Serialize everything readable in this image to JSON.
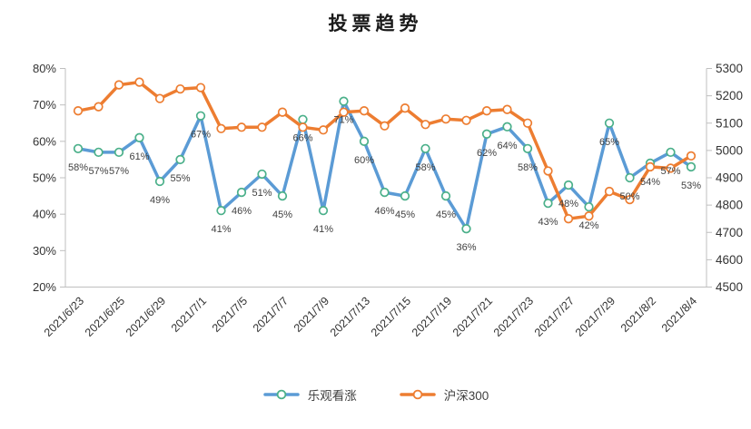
{
  "chart_data": {
    "type": "line",
    "title": "投票趋势",
    "n_points": 31,
    "label_every_n_points": 2,
    "x_tick_labels": [
      "2021/6/23",
      "2021/6/25",
      "2021/6/29",
      "2021/7/1",
      "2021/7/5",
      "2021/7/7",
      "2021/7/9",
      "2021/7/13",
      "2021/7/15",
      "2021/7/19",
      "2021/7/21",
      "2021/7/23",
      "2021/7/27",
      "2021/7/29",
      "2021/8/2",
      "2021/8/4"
    ],
    "left_axis": {
      "min": 20,
      "max": 80,
      "tick_labels": [
        "20%",
        "30%",
        "40%",
        "50%",
        "60%",
        "70%",
        "80%"
      ]
    },
    "right_axis": {
      "min": 4500,
      "max": 5300,
      "tick_labels": [
        "4500",
        "4600",
        "4700",
        "4800",
        "4900",
        "5000",
        "5100",
        "5200",
        "5300"
      ]
    },
    "series": [
      {
        "name": "乐观看涨",
        "axis": "left",
        "line_color": "#5B9BD5",
        "marker_color": "#4BB08A",
        "values": [
          58,
          57,
          57,
          61,
          49,
          55,
          67,
          41,
          46,
          51,
          45,
          66,
          41,
          71,
          60,
          46,
          45,
          58,
          45,
          36,
          62,
          64,
          58,
          43,
          48,
          42,
          65,
          50,
          54,
          57,
          53
        ],
        "data_labels": [
          "58%",
          "57%",
          "57%",
          "61%",
          "49%",
          "55%",
          "67%",
          "41%",
          "46%",
          "51%",
          "45%",
          "66%",
          "41%",
          "71%",
          "60%",
          "46%",
          "45%",
          "58%",
          "45%",
          "36%",
          "62%",
          "64%",
          "58%",
          "43%",
          "48%",
          "42%",
          "65%",
          "50%",
          "54%",
          "57%",
          "53%"
        ]
      },
      {
        "name": "沪深300",
        "axis": "right",
        "line_color": "#ED7D31",
        "marker_color": "#ED7D31",
        "values": [
          5145,
          5160,
          5240,
          5250,
          5190,
          5225,
          5230,
          5080,
          5085,
          5085,
          5140,
          5085,
          5075,
          5140,
          5145,
          5090,
          5155,
          5095,
          5115,
          5110,
          5145,
          5150,
          5100,
          4925,
          4750,
          4760,
          4850,
          4820,
          4940,
          4935,
          4980
        ],
        "data_labels": null
      }
    ],
    "legend_position": "bottom",
    "grid": "off",
    "colors": {
      "axis_line": "#BFBFBF",
      "axis_text": "#333333",
      "data_label_text": "#3f3f3f"
    }
  }
}
